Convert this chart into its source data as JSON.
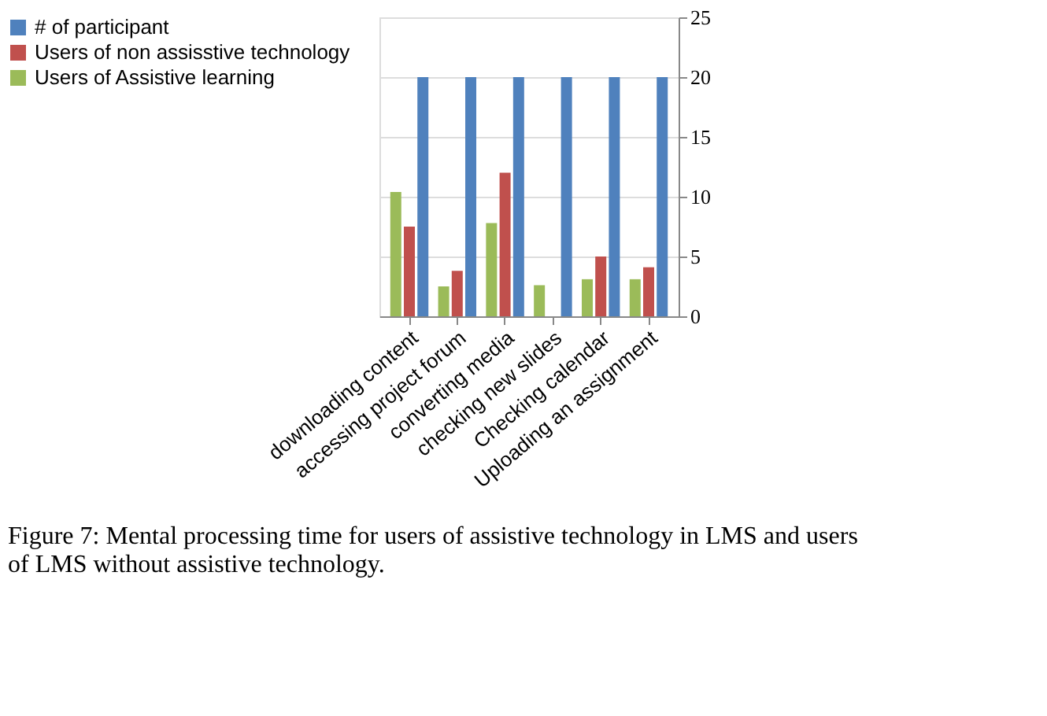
{
  "chart_data": {
    "type": "bar",
    "title": "Figure 7: Mental processing time for users of assistive technology in LMS and users of LMS without assistive technology.",
    "categories": [
      "downloading content",
      "accessing project forum",
      "converting media",
      "checking new slides",
      "Checking calendar",
      "Uploading an assignment"
    ],
    "series": [
      {
        "name": "# of participant",
        "color": "#4f81bd",
        "values": [
          20,
          20,
          20,
          20,
          20,
          20
        ]
      },
      {
        "name": "Users of non assisstive technology",
        "color": "#c0504d",
        "values": [
          7.5,
          3.8,
          12,
          null,
          5,
          4.1
        ]
      },
      {
        "name": "Users of Assistive learning",
        "color": "#9bbb59",
        "values": [
          10.4,
          2.5,
          7.8,
          2.6,
          3.1,
          3.1
        ]
      }
    ],
    "ylim": [
      0,
      25
    ],
    "yticks": [
      0,
      5,
      10,
      15,
      20,
      25
    ],
    "grid": "y",
    "legend": "left"
  }
}
